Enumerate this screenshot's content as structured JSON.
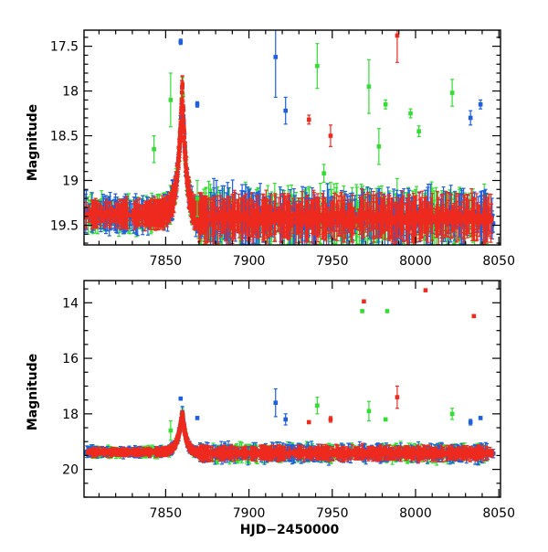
{
  "chart_data": [
    {
      "type": "scatter",
      "title": "",
      "xlabel": "",
      "ylabel": "Magnitude",
      "xlim": [
        7801,
        8051
      ],
      "ylim": [
        19.72,
        17.32
      ],
      "y_inverted": true,
      "xticks": [
        "7850",
        "7900",
        "7950",
        "8000",
        "8050"
      ],
      "yticks": [
        "17.5",
        "18",
        "18.5",
        "19",
        "19.5"
      ],
      "series_colors": {
        "blue": "#1f5fdc",
        "green": "#33dd33",
        "red": "#ee2a1f"
      },
      "outliers": [
        {
          "series": "blue",
          "x": 7859,
          "y": 17.45,
          "err": 0.03
        },
        {
          "series": "blue",
          "x": 7869,
          "y": 18.15,
          "err": 0.03
        },
        {
          "series": "blue",
          "x": 7916,
          "y": 17.62,
          "err": 0.45
        },
        {
          "series": "blue",
          "x": 7922,
          "y": 18.22,
          "err": 0.15
        },
        {
          "series": "blue",
          "x": 8033,
          "y": 18.3,
          "err": 0.08
        },
        {
          "series": "blue",
          "x": 8039,
          "y": 18.15,
          "err": 0.05
        },
        {
          "series": "green",
          "x": 7843,
          "y": 18.65,
          "err": 0.15
        },
        {
          "series": "green",
          "x": 7853,
          "y": 18.1,
          "err": 0.3
        },
        {
          "series": "green",
          "x": 7869,
          "y": 19.2,
          "err": 0.2
        },
        {
          "series": "green",
          "x": 7941,
          "y": 17.72,
          "err": 0.25
        },
        {
          "series": "green",
          "x": 7972,
          "y": 17.95,
          "err": 0.3
        },
        {
          "series": "green",
          "x": 7978,
          "y": 18.62,
          "err": 0.2
        },
        {
          "series": "green",
          "x": 7982,
          "y": 18.15,
          "err": 0.05
        },
        {
          "series": "green",
          "x": 7997,
          "y": 18.25,
          "err": 0.05
        },
        {
          "series": "green",
          "x": 8002,
          "y": 18.45,
          "err": 0.06
        },
        {
          "series": "green",
          "x": 8022,
          "y": 18.02,
          "err": 0.15
        },
        {
          "series": "green",
          "x": 7945,
          "y": 18.92,
          "err": 0.1
        },
        {
          "series": "red",
          "x": 7936,
          "y": 18.32,
          "err": 0.05
        },
        {
          "series": "red",
          "x": 7949,
          "y": 18.5,
          "err": 0.12
        },
        {
          "series": "red",
          "x": 7989,
          "y": 17.38,
          "err": 0.3
        },
        {
          "series": "red",
          "x": 7860,
          "y": 17.95,
          "err": 0.05
        }
      ]
    },
    {
      "type": "scatter",
      "title": "",
      "xlabel": "HJD−2450000",
      "ylabel": "Magnitude",
      "xlim": [
        7801,
        8051
      ],
      "ylim": [
        21.0,
        13.2
      ],
      "y_inverted": true,
      "xticks": [
        "7850",
        "7900",
        "7950",
        "8000",
        "8050"
      ],
      "yticks": [
        "14",
        "16",
        "18",
        "20"
      ],
      "series_colors": {
        "blue": "#1f5fdc",
        "green": "#33dd33",
        "red": "#ee2a1f"
      },
      "outliers": [
        {
          "series": "red",
          "x": 7969,
          "y": 13.95,
          "err": 0
        },
        {
          "series": "green",
          "x": 7968,
          "y": 14.3,
          "err": 0
        },
        {
          "series": "green",
          "x": 7983,
          "y": 14.3,
          "err": 0
        },
        {
          "series": "red",
          "x": 8006,
          "y": 13.55,
          "err": 0
        },
        {
          "series": "red",
          "x": 8035,
          "y": 14.48,
          "err": 0
        },
        {
          "series": "blue",
          "x": 7859,
          "y": 17.45,
          "err": 0.05
        },
        {
          "series": "blue",
          "x": 7869,
          "y": 18.15,
          "err": 0.05
        },
        {
          "series": "blue",
          "x": 7916,
          "y": 17.6,
          "err": 0.5
        },
        {
          "series": "blue",
          "x": 7922,
          "y": 18.2,
          "err": 0.2
        },
        {
          "series": "blue",
          "x": 8033,
          "y": 18.3,
          "err": 0.1
        },
        {
          "series": "blue",
          "x": 8039,
          "y": 18.15,
          "err": 0.05
        },
        {
          "series": "green",
          "x": 7853,
          "y": 18.6,
          "err": 0.35
        },
        {
          "series": "green",
          "x": 7941,
          "y": 17.7,
          "err": 0.3
        },
        {
          "series": "green",
          "x": 7972,
          "y": 17.9,
          "err": 0.35
        },
        {
          "series": "green",
          "x": 7982,
          "y": 18.2,
          "err": 0.05
        },
        {
          "series": "green",
          "x": 8022,
          "y": 18.0,
          "err": 0.2
        },
        {
          "series": "red",
          "x": 7989,
          "y": 17.4,
          "err": 0.4
        },
        {
          "series": "red",
          "x": 7936,
          "y": 18.3,
          "err": 0.05
        },
        {
          "series": "red",
          "x": 7949,
          "y": 18.2,
          "err": 0.1
        }
      ]
    }
  ]
}
